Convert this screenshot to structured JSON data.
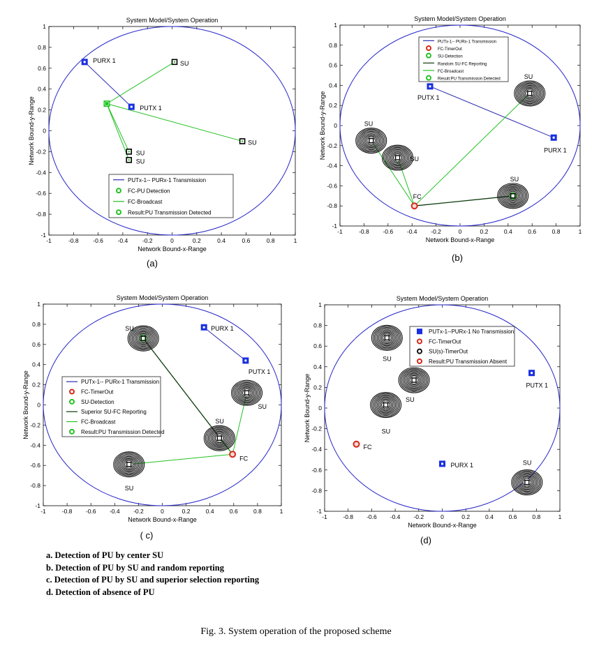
{
  "colors": {
    "circle": "#2424c8",
    "pu_link": "#2b2bb0",
    "broadcast": "#22c122",
    "report": "#0a3a0a",
    "fc": "#d42a1a",
    "su_marker": "#111111",
    "pu_marker": "#1a2fe0"
  },
  "chart_data": [
    {
      "type": "scatter",
      "id": "a",
      "title": "System Model/System Operation",
      "xlabel": "Network Bound-x-Range",
      "ylabel": "Network Bound-y-Range",
      "xlim": [
        -1,
        1
      ],
      "ylim": [
        -1,
        1
      ],
      "xticks": [
        "-1",
        "-0.8",
        "-0.6",
        "-0.4",
        "-0.2",
        "0",
        "0.2",
        "0.4",
        "0.6",
        "0.8",
        "1"
      ],
      "yticks": [
        "1",
        "0.8",
        "0.6",
        "0.4",
        "0.2",
        "0",
        "-0.2",
        "-0.4",
        "-0.6",
        "-0.8",
        "-1"
      ],
      "panel_label": "(a)",
      "legend": [
        {
          "label": "PUTx-1-- PURx-1 Transmission",
          "kind": "line",
          "color": "#2b2bb0"
        },
        {
          "label": "FC-PU Detection",
          "kind": "circle",
          "color": "#22c122"
        },
        {
          "label": "FC-Broadcast",
          "kind": "line",
          "color": "#22c122"
        },
        {
          "label": "Result:PU Transmission Detected",
          "kind": "circle",
          "color": "#22c122"
        }
      ],
      "nodes": [
        {
          "kind": "pu",
          "x": -0.71,
          "y": 0.66,
          "label": "PURX 1",
          "ldx": 12,
          "ldy": -2
        },
        {
          "kind": "pu",
          "x": -0.33,
          "y": 0.23,
          "label": "PUTX 1",
          "ldx": 12,
          "ldy": 2
        },
        {
          "kind": "su",
          "x": 0.02,
          "y": 0.66,
          "label": "SU",
          "ldx": 8,
          "ldy": 2
        },
        {
          "kind": "su",
          "x": 0.57,
          "y": -0.1,
          "label": "SU",
          "ldx": 8,
          "ldy": 2
        },
        {
          "kind": "su",
          "x": -0.35,
          "y": -0.2,
          "label": "SU",
          "ldx": 10,
          "ldy": 2
        },
        {
          "kind": "su",
          "x": -0.35,
          "y": -0.28,
          "label": "SU",
          "ldx": 10,
          "ldy": 2
        },
        {
          "kind": "fcgreen",
          "x": -0.53,
          "y": 0.26,
          "label": "",
          "ldx": 0,
          "ldy": 0
        }
      ],
      "links": [
        {
          "from": [
            -0.71,
            0.66
          ],
          "to": [
            -0.33,
            0.23
          ],
          "style": "pu"
        },
        {
          "from": [
            -0.53,
            0.26
          ],
          "to": [
            0.02,
            0.66
          ],
          "style": "broadcast"
        },
        {
          "from": [
            -0.53,
            0.26
          ],
          "to": [
            0.57,
            -0.1
          ],
          "style": "broadcast"
        },
        {
          "from": [
            -0.53,
            0.26
          ],
          "to": [
            -0.35,
            -0.2
          ],
          "style": "broadcast"
        },
        {
          "from": [
            -0.53,
            0.26
          ],
          "to": [
            -0.35,
            -0.28
          ],
          "style": "broadcast"
        }
      ]
    },
    {
      "type": "scatter",
      "id": "b",
      "title": "System Model/System Operation",
      "xlabel": "Network Bound-x-Range",
      "ylabel": "Network Bound-y-Range",
      "xlim": [
        -1,
        1
      ],
      "ylim": [
        -1,
        1
      ],
      "xticks": [
        "-1",
        "-0.8",
        "-0.6",
        "-0.4",
        "-0.2",
        "0",
        "0.2",
        "0.4",
        "0.6",
        "0.8",
        "1"
      ],
      "yticks": [
        "1",
        "0.8",
        "0.6",
        "0.4",
        "0.2",
        "0",
        "-0.2",
        "-0.4",
        "-0.6",
        "-0.8",
        "-1"
      ],
      "panel_label": "(b)",
      "legend": [
        {
          "label": "PUTx-1-- PURx-1 Transmission",
          "kind": "line",
          "color": "#2b2bb0"
        },
        {
          "label": "FC-TimerOut",
          "kind": "circle",
          "color": "#d42a1a"
        },
        {
          "label": "SU-Detection",
          "kind": "circle",
          "color": "#22c122"
        },
        {
          "label": "Random SU-FC Reporting",
          "kind": "line",
          "color": "#0a3a0a"
        },
        {
          "label": "FC-Broadcast",
          "kind": "line",
          "color": "#22c122"
        },
        {
          "label": "Result:PU Transmission Detected",
          "kind": "circle",
          "color": "#22c122"
        }
      ],
      "nodes": [
        {
          "kind": "pu",
          "x": -0.25,
          "y": 0.39,
          "label": "PUTX 1",
          "ldx": -18,
          "ldy": 16
        },
        {
          "kind": "pu",
          "x": 0.78,
          "y": -0.12,
          "label": "PURX 1",
          "ldx": -14,
          "ldy": 18
        },
        {
          "kind": "suring",
          "x": 0.58,
          "y": 0.32,
          "label": "SU",
          "ldx": -8,
          "ldy": -24
        },
        {
          "kind": "suring",
          "x": -0.74,
          "y": -0.15,
          "label": "SU",
          "ldx": -10,
          "ldy": -24
        },
        {
          "kind": "suring",
          "x": -0.52,
          "y": -0.32,
          "label": "SU",
          "ldx": 18,
          "ldy": 2
        },
        {
          "kind": "suringgreen",
          "x": 0.44,
          "y": -0.7,
          "label": "SU",
          "ldx": -4,
          "ldy": -24
        },
        {
          "kind": "fc",
          "x": -0.38,
          "y": -0.8,
          "label": "FC",
          "ldx": -2,
          "ldy": -13
        }
      ],
      "links": [
        {
          "from": [
            -0.25,
            0.39
          ],
          "to": [
            0.78,
            -0.12
          ],
          "style": "pu"
        },
        {
          "from": [
            -0.38,
            -0.8
          ],
          "to": [
            0.58,
            0.32
          ],
          "style": "broadcast"
        },
        {
          "from": [
            -0.38,
            -0.8
          ],
          "to": [
            -0.74,
            -0.15
          ],
          "style": "broadcast"
        },
        {
          "from": [
            -0.38,
            -0.8
          ],
          "to": [
            -0.52,
            -0.32
          ],
          "style": "broadcast"
        },
        {
          "from": [
            -0.38,
            -0.8
          ],
          "to": [
            0.44,
            -0.7
          ],
          "style": "report"
        }
      ]
    },
    {
      "type": "scatter",
      "id": "c",
      "title": "System Model/System Operation",
      "xlabel": "Network Bound-x-Range",
      "ylabel": "Network Bound-y-Range",
      "xlim": [
        -1,
        1
      ],
      "ylim": [
        -1,
        1
      ],
      "xticks": [
        "-1",
        "-0.8",
        "-0.6",
        "-0.4",
        "-0.2",
        "0",
        "0.2",
        "0.4",
        "0.6",
        "0.8",
        "1"
      ],
      "yticks": [
        "1",
        "0.8",
        "0.6",
        "0.4",
        "0.2",
        "0",
        "-0.2",
        "-0.4",
        "-0.6",
        "-0.8",
        "-1"
      ],
      "panel_label": "( c)",
      "legend": [
        {
          "label": "PUTx-1-- PURx-1 Transmission",
          "kind": "line",
          "color": "#2b2bb0"
        },
        {
          "label": "FC-TimerOut",
          "kind": "circle",
          "color": "#d42a1a"
        },
        {
          "label": "SU-Detection",
          "kind": "circle",
          "color": "#22c122"
        },
        {
          "label": "Superior SU-FC Reporting",
          "kind": "line",
          "color": "#0a3a0a"
        },
        {
          "label": "FC-Broadcast",
          "kind": "line",
          "color": "#22c122"
        },
        {
          "label": "Result:PU Transmission Detected",
          "kind": "circle",
          "color": "#22c122"
        }
      ],
      "nodes": [
        {
          "kind": "pu",
          "x": 0.35,
          "y": 0.77,
          "label": "PURX 1",
          "ldx": 10,
          "ldy": 2
        },
        {
          "kind": "pu",
          "x": 0.7,
          "y": 0.44,
          "label": "PUTX 1",
          "ldx": 4,
          "ldy": 16
        },
        {
          "kind": "suringgreen",
          "x": -0.16,
          "y": 0.66,
          "label": "SU",
          "ldx": -26,
          "ldy": -14
        },
        {
          "kind": "suring",
          "x": 0.71,
          "y": 0.12,
          "label": "SU",
          "ldx": 16,
          "ldy": 20
        },
        {
          "kind": "suring",
          "x": 0.48,
          "y": -0.33,
          "label": "SU",
          "ldx": -6,
          "ldy": -24
        },
        {
          "kind": "suring",
          "x": -0.28,
          "y": -0.59,
          "label": "SU",
          "ldx": -6,
          "ldy": 34
        },
        {
          "kind": "fc",
          "x": 0.59,
          "y": -0.49,
          "label": "FC",
          "ldx": 10,
          "ldy": 6
        }
      ],
      "links": [
        {
          "from": [
            0.35,
            0.77
          ],
          "to": [
            0.7,
            0.44
          ],
          "style": "pu"
        },
        {
          "from": [
            -0.16,
            0.66
          ],
          "to": [
            0.59,
            -0.49
          ],
          "style": "report"
        },
        {
          "from": [
            0.59,
            -0.49
          ],
          "to": [
            0.71,
            0.12
          ],
          "style": "broadcast"
        },
        {
          "from": [
            0.59,
            -0.49
          ],
          "to": [
            0.48,
            -0.33
          ],
          "style": "broadcast"
        },
        {
          "from": [
            0.59,
            -0.49
          ],
          "to": [
            -0.28,
            -0.59
          ],
          "style": "broadcast"
        }
      ]
    },
    {
      "type": "scatter",
      "id": "d",
      "title": "System Model/System Operation",
      "xlabel": "Network Bound-x-Range",
      "ylabel": "Network Bound-y-Range",
      "xlim": [
        -1,
        1
      ],
      "ylim": [
        -1,
        1
      ],
      "xticks": [
        "-1",
        "-0.8",
        "-0.6",
        "-0.4",
        "-0.2",
        "0",
        "0.2",
        "0.4",
        "0.6",
        "0.8",
        "1"
      ],
      "yticks": [
        "1",
        "0.8",
        "0.6",
        "0.4",
        "0.2",
        "0",
        "-0.2",
        "-0.4",
        "-0.6",
        "-0.8",
        "-1"
      ],
      "panel_label": "(d)",
      "legend": [
        {
          "label": "PUTx-1--PURx-1 No Transmission",
          "kind": "square",
          "color": "#1a2fe0"
        },
        {
          "label": "FC-TimerOut",
          "kind": "circle",
          "color": "#d42a1a"
        },
        {
          "label": "SU(s)-TimerOut",
          "kind": "circle",
          "color": "#111111"
        },
        {
          "label": "Result:PU Transmission Absent",
          "kind": "circle",
          "color": "#d42a1a"
        }
      ],
      "nodes": [
        {
          "kind": "pu",
          "x": 0.76,
          "y": 0.34,
          "label": "PUTX 1",
          "ldx": -8,
          "ldy": 18
        },
        {
          "kind": "pu",
          "x": 0.0,
          "y": -0.54,
          "label": "PURX 1",
          "ldx": 12,
          "ldy": 2
        },
        {
          "kind": "suring",
          "x": -0.47,
          "y": 0.68,
          "label": "SU",
          "ldx": -6,
          "ldy": 30
        },
        {
          "kind": "suring",
          "x": -0.24,
          "y": 0.27,
          "label": "SU",
          "ldx": -12,
          "ldy": 28
        },
        {
          "kind": "suring",
          "x": -0.48,
          "y": 0.03,
          "label": "SU",
          "ldx": -6,
          "ldy": 38
        },
        {
          "kind": "suring",
          "x": 0.72,
          "y": -0.72,
          "label": "SU",
          "ldx": -6,
          "ldy": -28
        },
        {
          "kind": "fc",
          "x": -0.73,
          "y": -0.35,
          "label": "FC",
          "ldx": 10,
          "ldy": 4
        }
      ],
      "links": []
    }
  ],
  "captions": [
    "a. Detection of PU by center SU",
    "b. Detection of PU by SU and random reporting",
    "c. Detection of PU by SU and superior selection reporting",
    "d. Detection of absence of PU"
  ],
  "figure_caption": "Fig. 3.   System operation of the proposed scheme"
}
